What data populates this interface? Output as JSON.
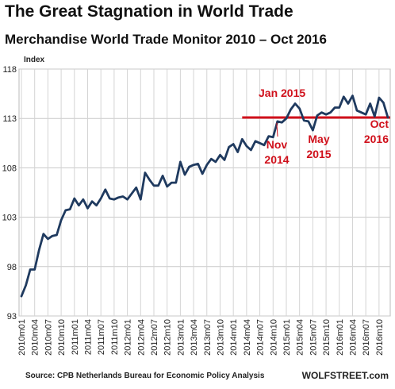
{
  "chart_data": {
    "type": "line",
    "title": "The Great Stagnation in World Trade",
    "subtitle": "Merchandise World Trade Monitor 2010 – Oct 2016",
    "ylabel": "Index",
    "xlabel": "",
    "ylim": [
      93,
      118
    ],
    "yticks": [
      93,
      98,
      103,
      108,
      113,
      118
    ],
    "grid": true,
    "series_color": "#1f3a5f",
    "reference_color": "#d0101b",
    "xtick_labels": [
      "2010m01",
      "2010m04",
      "2010m07",
      "2010m10",
      "2011m01",
      "2011m04",
      "2011m07",
      "2011m10",
      "2012m01",
      "2012m04",
      "2012m07",
      "2012m10",
      "2013m01",
      "2013m04",
      "2013m07",
      "2013m10",
      "2014m01",
      "2014m04",
      "2014m07",
      "2014m10",
      "2015m01",
      "2015m04",
      "2015m07",
      "2015m10",
      "2016m01",
      "2016m04",
      "2016m07",
      "2016m10"
    ],
    "values": [
      95.0,
      96.1,
      97.7,
      97.7,
      99.7,
      101.3,
      100.8,
      101.1,
      101.2,
      102.7,
      103.7,
      103.8,
      104.9,
      104.2,
      104.8,
      103.9,
      104.6,
      104.2,
      104.9,
      105.8,
      104.9,
      104.8,
      105.0,
      105.1,
      104.8,
      105.4,
      106.0,
      104.8,
      107.5,
      106.8,
      106.2,
      106.2,
      107.2,
      106.1,
      106.5,
      106.5,
      108.6,
      107.3,
      108.1,
      108.3,
      108.4,
      107.4,
      108.3,
      108.9,
      108.6,
      109.3,
      108.8,
      110.1,
      110.4,
      109.6,
      110.9,
      110.2,
      109.8,
      110.7,
      110.5,
      110.3,
      111.2,
      111.1,
      112.7,
      112.6,
      113.0,
      113.9,
      114.5,
      114.0,
      112.8,
      112.7,
      111.8,
      113.3,
      113.6,
      113.4,
      113.6,
      114.1,
      114.1,
      115.2,
      114.5,
      115.3,
      113.8,
      113.6,
      113.4,
      114.5,
      113.2,
      115.1,
      114.6,
      113.1
    ],
    "reference_line": {
      "value": 113.1
    },
    "annotations": [
      {
        "text": "Jan 2015"
      },
      {
        "lines": [
          "Nov",
          "2014"
        ]
      },
      {
        "lines": [
          "May",
          "2015"
        ]
      },
      {
        "lines": [
          "Oct",
          "2016"
        ]
      }
    ]
  },
  "footer": {
    "source": "Source: CPB Netherlands Bureau for Economic Policy Analysis",
    "brand": "WOLFSTREET.com"
  }
}
